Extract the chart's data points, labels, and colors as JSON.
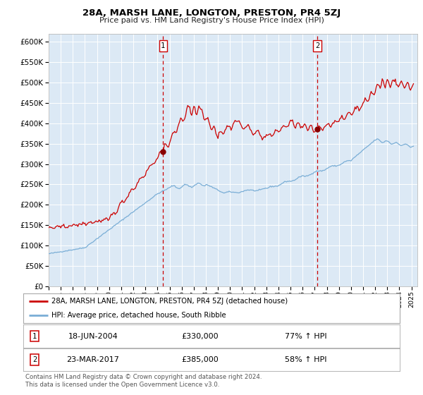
{
  "title": "28A, MARSH LANE, LONGTON, PRESTON, PR4 5ZJ",
  "subtitle": "Price paid vs. HM Land Registry's House Price Index (HPI)",
  "red_label": "28A, MARSH LANE, LONGTON, PRESTON, PR4 5ZJ (detached house)",
  "blue_label": "HPI: Average price, detached house, South Ribble",
  "sale1_date": "18-JUN-2004",
  "sale1_price": 330000,
  "sale1_pct": "77% ↑ HPI",
  "sale2_date": "23-MAR-2017",
  "sale2_price": 385000,
  "sale2_pct": "58% ↑ HPI",
  "footnote": "Contains HM Land Registry data © Crown copyright and database right 2024.\nThis data is licensed under the Open Government Licence v3.0.",
  "ylim": [
    0,
    620000
  ],
  "yticks": [
    0,
    50000,
    100000,
    150000,
    200000,
    250000,
    300000,
    350000,
    400000,
    450000,
    500000,
    550000,
    600000
  ],
  "background_color": "#ffffff",
  "plot_bg_color": "#dce9f5",
  "grid_color": "#ffffff",
  "red_color": "#cc0000",
  "blue_color": "#7aaed6",
  "sale1_x": 2004.46,
  "sale2_x": 2017.22,
  "xlim_start": 1995,
  "xlim_end": 2025.5
}
